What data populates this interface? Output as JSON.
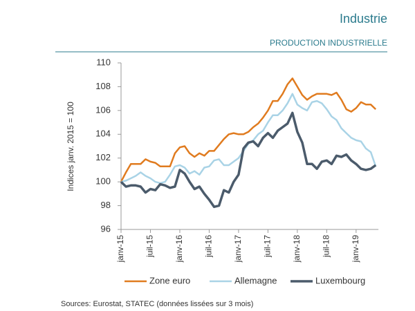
{
  "chart_data": {
    "type": "line",
    "title": "Industrie",
    "subtitle": "PRODUCTION INDUSTRIELLE",
    "y_label": "Indices janv. 2015 = 100",
    "source": "Sources: Eurostat, STATEC (données lissées sur 3 mois)",
    "categories": [
      "janv-15",
      null,
      null,
      null,
      null,
      null,
      "juil-15",
      null,
      null,
      null,
      null,
      null,
      "janv-16",
      null,
      null,
      null,
      null,
      null,
      "juil-16",
      null,
      null,
      null,
      null,
      null,
      "janv-17",
      null,
      null,
      null,
      null,
      null,
      "juil-17",
      null,
      null,
      null,
      null,
      null,
      "janv-18",
      null,
      null,
      null,
      null,
      null,
      "juil-18",
      null,
      null,
      null,
      null,
      null,
      "janv-19",
      null,
      null,
      null,
      null
    ],
    "series": [
      {
        "name": "Zone euro",
        "color": "#e07b1f",
        "values": [
          100,
          100.8,
          101.5,
          101.5,
          101.5,
          101.9,
          101.7,
          101.6,
          101.3,
          101.3,
          101.3,
          102.4,
          102.9,
          103.0,
          102.4,
          102.1,
          102.4,
          102.2,
          102.6,
          102.6,
          103.1,
          103.6,
          104.0,
          104.1,
          104.0,
          104.0,
          104.2,
          104.6,
          104.9,
          105.4,
          106.0,
          106.8,
          106.8,
          107.4,
          108.2,
          108.7,
          108.0,
          107.3,
          106.9,
          107.2,
          107.4,
          107.4,
          107.4,
          107.3,
          107.5,
          106.9,
          106.1,
          105.9,
          106.2,
          106.7,
          106.5,
          106.5,
          106.1
        ]
      },
      {
        "name": "Allemagne",
        "color": "#a9d3e6",
        "values": [
          100,
          100.1,
          100.3,
          100.5,
          100.8,
          100.5,
          100.3,
          100.0,
          99.9,
          100.0,
          100.6,
          101.3,
          101.4,
          101.2,
          100.7,
          100.9,
          100.6,
          101.2,
          101.3,
          101.8,
          101.9,
          101.4,
          101.4,
          101.7,
          102.0,
          102.6,
          103.2,
          103.5,
          104.0,
          104.3,
          105.0,
          105.6,
          105.6,
          106.0,
          106.6,
          107.4,
          106.5,
          106.2,
          106.0,
          106.7,
          106.8,
          106.6,
          106.1,
          105.5,
          105.2,
          104.5,
          104.1,
          103.7,
          103.5,
          103.4,
          102.8,
          102.5,
          101.3
        ]
      },
      {
        "name": "Luxembourg",
        "color": "#4b5b6b",
        "values": [
          100,
          99.6,
          99.7,
          99.7,
          99.6,
          99.1,
          99.4,
          99.3,
          99.8,
          99.7,
          99.5,
          99.6,
          101.0,
          100.7,
          100.0,
          99.4,
          99.6,
          99.0,
          98.5,
          97.9,
          98.0,
          99.3,
          99.1,
          100.0,
          100.6,
          102.8,
          103.3,
          103.4,
          103.0,
          103.7,
          104.1,
          103.7,
          104.3,
          104.6,
          104.9,
          105.8,
          104.2,
          103.3,
          101.5,
          101.5,
          101.1,
          101.7,
          101.8,
          101.5,
          102.2,
          102.1,
          102.3,
          101.8,
          101.5,
          101.1,
          101.0,
          101.1,
          101.4
        ]
      }
    ],
    "ylim": [
      96,
      110
    ],
    "yticks": [
      96,
      98,
      100,
      102,
      104,
      106,
      108,
      110
    ],
    "grid": false,
    "legend": "bottom"
  }
}
